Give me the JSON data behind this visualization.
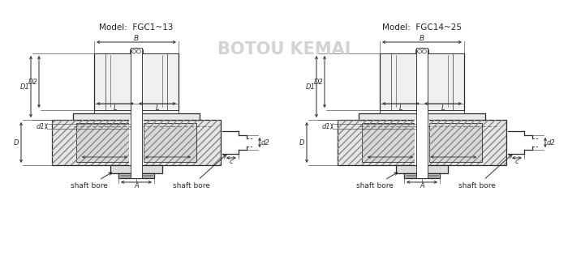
{
  "bg_color": "#ffffff",
  "line_color": "#2a2a2a",
  "dim_color": "#2a2a2a",
  "watermark": "BOTOU KEMAI",
  "watermark_color": "#cccccc",
  "model1": "Model:  FGC1~13",
  "model2": "Model:  FGC14~25"
}
